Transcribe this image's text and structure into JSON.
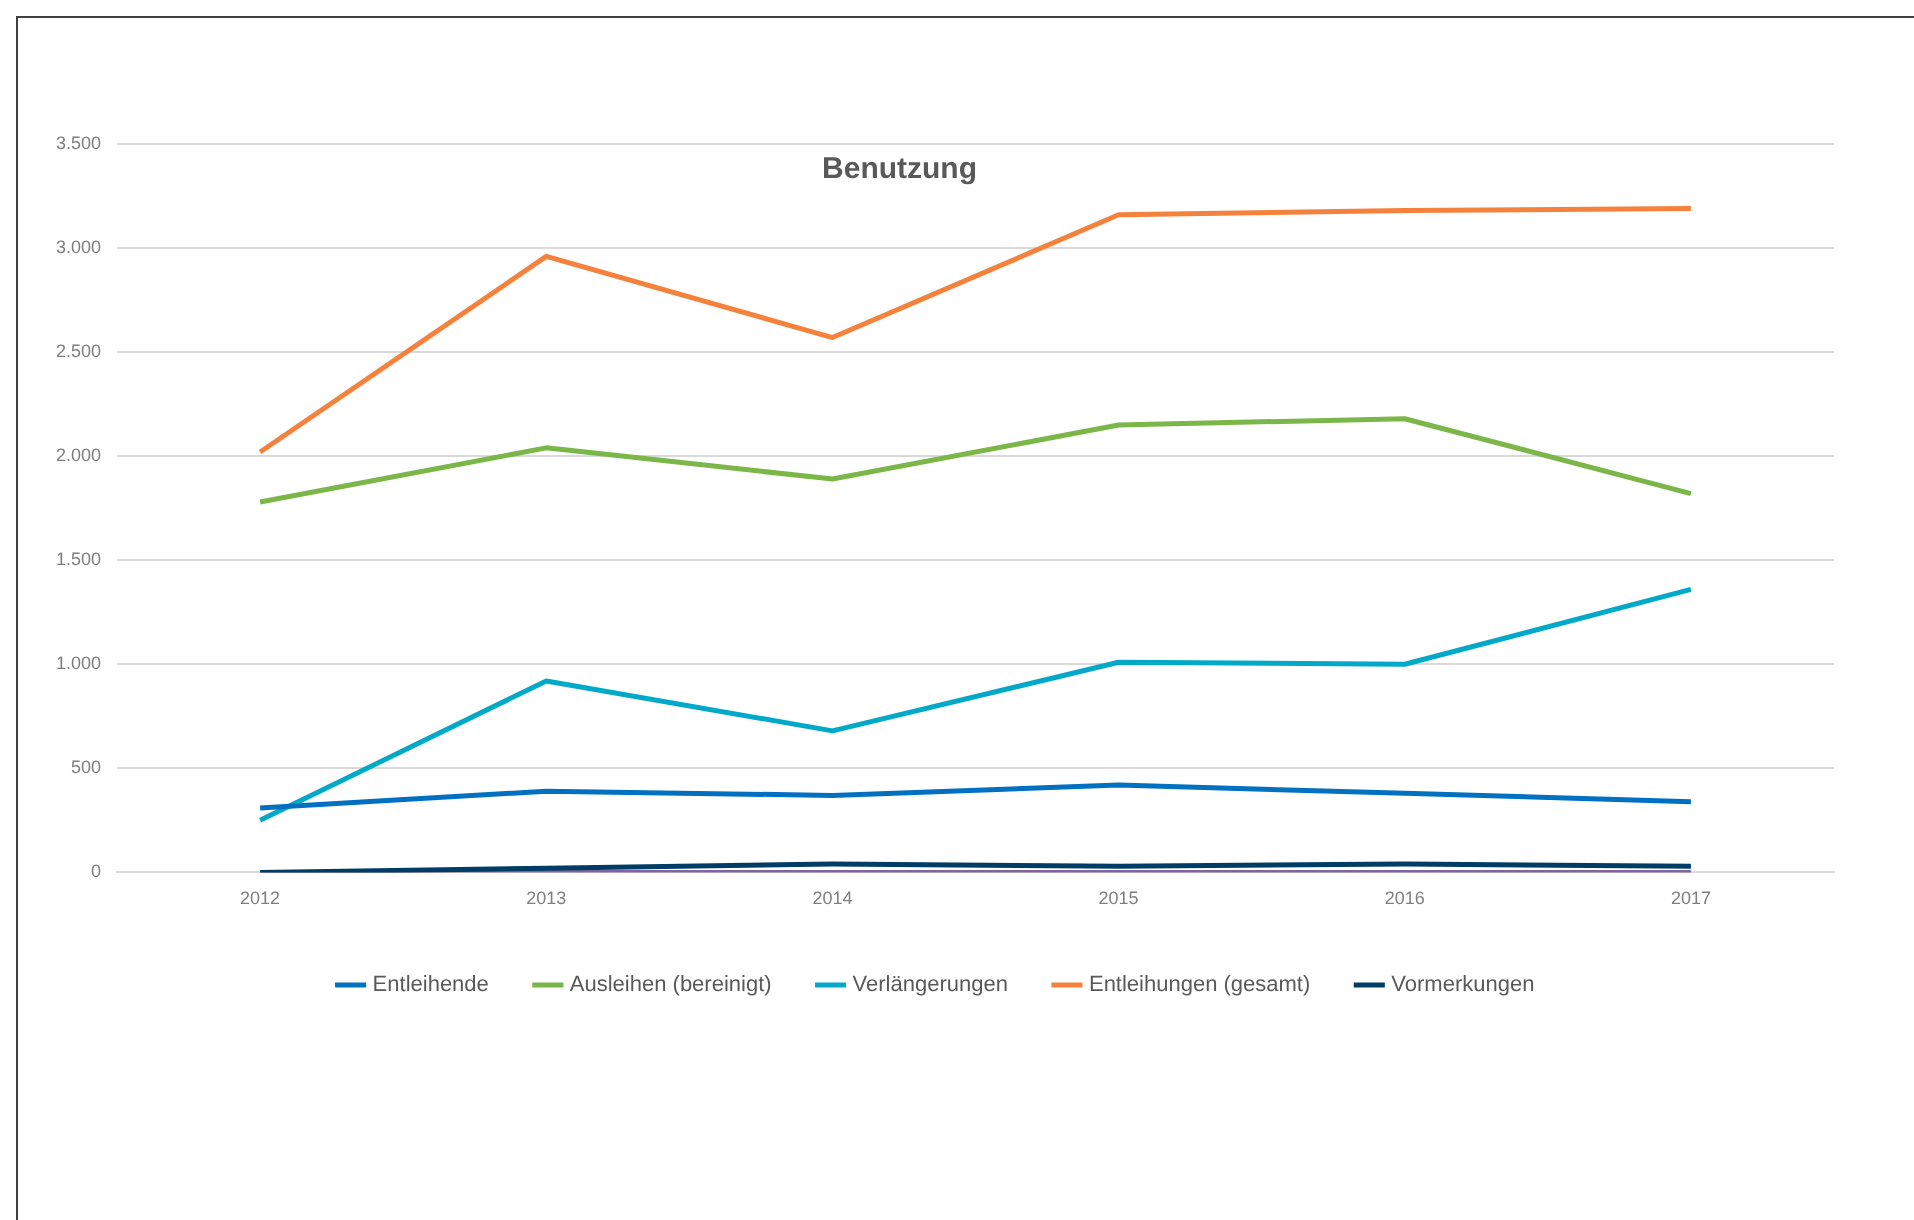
{
  "chart_data": {
    "type": "line",
    "title": "Benutzung",
    "categories": [
      "2012",
      "2013",
      "2014",
      "2015",
      "2016",
      "2017"
    ],
    "series": [
      {
        "name": "Entleihende",
        "color": "#0070c0",
        "values": [
          310,
          390,
          370,
          420,
          380,
          340
        ]
      },
      {
        "name": "Ausleihen (bereinigt)",
        "color": "#7ab648",
        "values": [
          1780,
          2040,
          1890,
          2150,
          2180,
          1820
        ]
      },
      {
        "name": "Verlängerungen",
        "color": "#00a9c8",
        "values": [
          250,
          920,
          680,
          1010,
          1000,
          1360
        ]
      },
      {
        "name": "Entleihungen (gesamt)",
        "color": "#f5823c",
        "values": [
          2020,
          2960,
          2570,
          3160,
          3180,
          3190
        ]
      },
      {
        "name": "Vormerkungen",
        "color": "#003d66",
        "values": [
          0,
          20,
          40,
          30,
          40,
          30
        ]
      },
      {
        "color": "#8064a2",
        "values": [
          0,
          0,
          0,
          0,
          0,
          0
        ]
      }
    ],
    "ylim": [
      0,
      3500
    ],
    "yticks": [
      {
        "value": 0,
        "label": "0"
      },
      {
        "value": 500,
        "label": "500"
      },
      {
        "value": 1000,
        "label": "1.000"
      },
      {
        "value": 1500,
        "label": "1.500"
      },
      {
        "value": 2000,
        "label": "2.000"
      },
      {
        "value": 2500,
        "label": "2.500"
      },
      {
        "value": 3000,
        "label": "3.000"
      },
      {
        "value": 3500,
        "label": "3.500"
      }
    ],
    "grid": "y",
    "legend": "bottom",
    "marker": "none",
    "line_style": "solid"
  }
}
